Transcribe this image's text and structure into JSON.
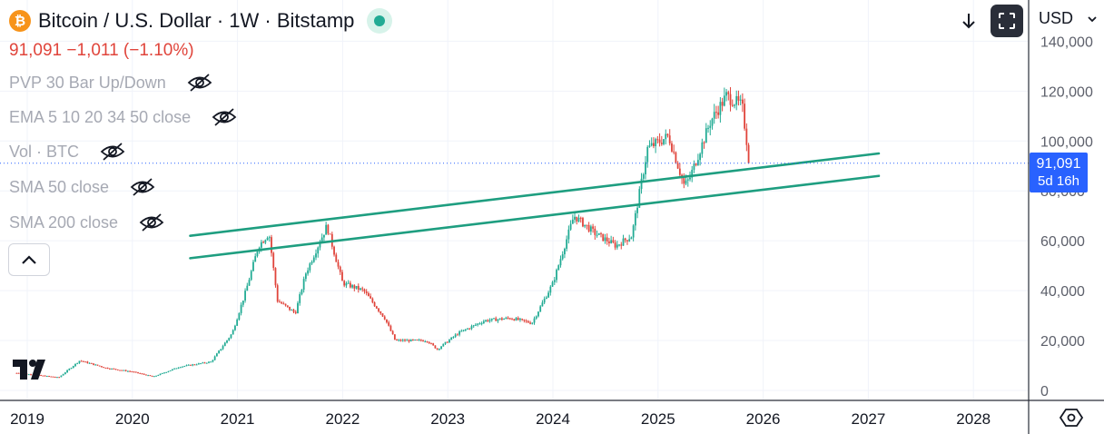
{
  "header": {
    "title": "Bitcoin / U.S. Dollar · 1W · Bitstamp",
    "logo_glyph": "₿",
    "price": "91,091",
    "change": "−1,011",
    "change_pct": "(−1.10%)"
  },
  "indicators": [
    {
      "label": "PVP 30 Bar Up/Down",
      "icon": "eye-off-icon"
    },
    {
      "label": "EMA 5 10 20 34 50 close",
      "icon": "eye-off-icon"
    },
    {
      "label": "Vol · BTC",
      "icon": "eye-off-icon"
    },
    {
      "label": "SMA 50 close",
      "icon": "eye-off-icon"
    },
    {
      "label": "SMA 200 close",
      "icon": "eye-off-icon"
    }
  ],
  "toolbar": {
    "download_icon": "download-arrow-icon",
    "fullscreen_icon": "fullscreen-icon",
    "currency": "USD"
  },
  "price_tag": {
    "price": "91,091",
    "countdown": "5d 16h"
  },
  "colors": {
    "up": "#22ab94",
    "down": "#e0443b",
    "trendline": "#1e9e80",
    "price_tag": "#2962ff"
  },
  "chart_data": {
    "type": "candlestick",
    "x_ticks": [
      "2019",
      "2020",
      "2021",
      "2022",
      "2023",
      "2024",
      "2025",
      "2026",
      "2027",
      "2028"
    ],
    "y_ticks": [
      "0",
      "20,000",
      "40,000",
      "60,000",
      "80,000",
      "100,000",
      "120,000",
      "140,000"
    ],
    "ylim": [
      0,
      140000
    ],
    "xlim": [
      2018.9,
      2028.6
    ],
    "current_price": 91091,
    "anchors": [
      [
        2018.9,
        7000
      ],
      [
        2019.3,
        5200
      ],
      [
        2019.5,
        12000
      ],
      [
        2019.75,
        9000
      ],
      [
        2020.0,
        7500
      ],
      [
        2020.2,
        5500
      ],
      [
        2020.45,
        9500
      ],
      [
        2020.75,
        11500
      ],
      [
        2020.95,
        23000
      ],
      [
        2021.08,
        40000
      ],
      [
        2021.2,
        58000
      ],
      [
        2021.3,
        63000
      ],
      [
        2021.38,
        36000
      ],
      [
        2021.55,
        31000
      ],
      [
        2021.65,
        47000
      ],
      [
        2021.85,
        66000
      ],
      [
        2022.0,
        43000
      ],
      [
        2022.2,
        40000
      ],
      [
        2022.4,
        29000
      ],
      [
        2022.5,
        20000
      ],
      [
        2022.8,
        20000
      ],
      [
        2022.9,
        16500
      ],
      [
        2023.1,
        23000
      ],
      [
        2023.35,
        28000
      ],
      [
        2023.6,
        29000
      ],
      [
        2023.8,
        27000
      ],
      [
        2024.0,
        43000
      ],
      [
        2024.2,
        70000
      ],
      [
        2024.4,
        63000
      ],
      [
        2024.6,
        58000
      ],
      [
        2024.75,
        62000
      ],
      [
        2024.9,
        97000
      ],
      [
        2025.1,
        102000
      ],
      [
        2025.25,
        82000
      ],
      [
        2025.3,
        85000
      ],
      [
        2025.5,
        108000
      ],
      [
        2025.65,
        118000
      ],
      [
        2025.8,
        114000
      ],
      [
        2025.87,
        91091
      ]
    ],
    "trendlines": [
      {
        "from": [
          2020.55,
          62000
        ],
        "to": [
          2027.1,
          95000
        ]
      },
      {
        "from": [
          2020.55,
          53000
        ],
        "to": [
          2027.1,
          86000
        ]
      }
    ]
  }
}
